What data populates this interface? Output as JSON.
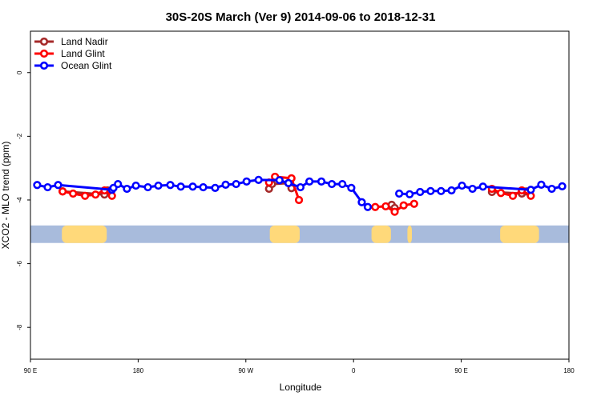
{
  "chart_data": {
    "type": "line",
    "title": "30S-20S March (Ver 9)   2014-09-06 to 2018-12-31",
    "xlabel": "Longitude",
    "ylabel": "XCO2 - MLO trend (ppm)",
    "xlim": [
      90,
      450
    ],
    "ylim": [
      -9.0,
      1.3
    ],
    "x_ticks": [
      {
        "value": 90,
        "label": "90 E"
      },
      {
        "value": 162,
        "label": "180"
      },
      {
        "value": 234,
        "label": "90 W"
      },
      {
        "value": 306,
        "label": "0"
      },
      {
        "value": 378,
        "label": "90 E"
      },
      {
        "value": 450,
        "label": "180"
      }
    ],
    "y_ticks": [
      {
        "value": 0,
        "label": "0"
      },
      {
        "value": -2,
        "label": "-2"
      },
      {
        "value": -4,
        "label": "-4"
      },
      {
        "value": -6,
        "label": "-6"
      },
      {
        "value": -8,
        "label": "-8"
      }
    ],
    "grid": false,
    "legend_position": "top-left",
    "series": [
      {
        "name": "Land Nadir",
        "color": "#a52a2a",
        "segments": [
          [
            [
              111.5,
              -3.73
            ],
            [
              139.5,
              -3.83
            ],
            [
              141.5,
              -3.7
            ]
          ],
          [
            [
              249.5,
              -3.65
            ],
            [
              251.5,
              -3.5
            ],
            [
              262.5,
              -3.47
            ],
            [
              264.5,
              -3.63
            ]
          ],
          [
            [
              331.5,
              -4.15
            ],
            [
              333.5,
              -4.25
            ]
          ],
          [
            [
              398.5,
              -3.75
            ],
            [
              418.5,
              -3.8
            ],
            [
              421.5,
              -3.73
            ]
          ]
        ]
      },
      {
        "name": "Land Glint",
        "color": "#ff0000",
        "segments": [
          [
            [
              111.5,
              -3.73
            ],
            [
              118.5,
              -3.8
            ],
            [
              126.5,
              -3.87
            ],
            [
              133.5,
              -3.83
            ],
            [
              139.5,
              -3.7
            ],
            [
              144.5,
              -3.87
            ]
          ],
          [
            [
              249.5,
              -3.45
            ],
            [
              253.5,
              -3.27
            ],
            [
              264.5,
              -3.32
            ],
            [
              269.5,
              -4.0
            ]
          ],
          [
            [
              320.5,
              -4.22
            ],
            [
              327.5,
              -4.2
            ],
            [
              333.5,
              -4.37
            ],
            [
              339.5,
              -4.17
            ],
            [
              346.5,
              -4.12
            ]
          ],
          [
            [
              398.5,
              -3.65
            ],
            [
              404.5,
              -3.78
            ],
            [
              412.5,
              -3.87
            ],
            [
              418.5,
              -3.7
            ],
            [
              424.5,
              -3.87
            ]
          ]
        ]
      },
      {
        "name": "Ocean Glint",
        "color": "#0000ff",
        "segments": [
          [
            [
              94.5,
              -3.53
            ],
            [
              101.5,
              -3.6
            ],
            [
              108.5,
              -3.53
            ],
            [
              144.5,
              -3.68
            ],
            [
              145.5,
              -3.62
            ],
            [
              148.5,
              -3.5
            ],
            [
              154.5,
              -3.65
            ],
            [
              160.5,
              -3.55
            ],
            [
              168.5,
              -3.6
            ],
            [
              175.5,
              -3.55
            ],
            [
              183.5,
              -3.53
            ],
            [
              190.5,
              -3.58
            ],
            [
              198.5,
              -3.58
            ],
            [
              205.5,
              -3.6
            ],
            [
              213.5,
              -3.62
            ],
            [
              220.5,
              -3.52
            ],
            [
              227.5,
              -3.5
            ],
            [
              234.5,
              -3.42
            ],
            [
              242.5,
              -3.37
            ],
            [
              256.5,
              -3.38
            ],
            [
              262.5,
              -3.47
            ],
            [
              270.5,
              -3.6
            ],
            [
              276.5,
              -3.42
            ],
            [
              284.5,
              -3.42
            ],
            [
              291.5,
              -3.5
            ],
            [
              298.5,
              -3.5
            ],
            [
              304.5,
              -3.62
            ],
            [
              311.5,
              -4.07
            ],
            [
              315.5,
              -4.22
            ]
          ],
          [
            [
              336.5,
              -3.8
            ],
            [
              343.5,
              -3.82
            ],
            [
              350.5,
              -3.75
            ],
            [
              357.5,
              -3.72
            ],
            [
              364.5,
              -3.72
            ],
            [
              371.5,
              -3.7
            ],
            [
              378.5,
              -3.55
            ],
            [
              385.5,
              -3.65
            ],
            [
              392.5,
              -3.58
            ],
            [
              424.5,
              -3.68
            ],
            [
              431.5,
              -3.52
            ],
            [
              438.5,
              -3.65
            ],
            [
              445.5,
              -3.57
            ]
          ]
        ]
      }
    ],
    "map_strip": {
      "y_top": -4.8,
      "y_bottom": -5.35,
      "ocean_color": "#a8bbdc",
      "land_color": "#ffd97a",
      "land_spans": [
        [
          111,
          141
        ],
        [
          250,
          270
        ],
        [
          318,
          331
        ],
        [
          342,
          345
        ],
        [
          404,
          430
        ]
      ]
    }
  }
}
